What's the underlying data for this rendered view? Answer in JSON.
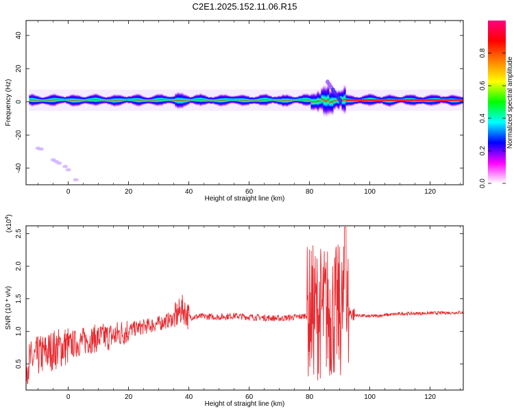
{
  "title": "C2E1.2025.152.11.06.R15",
  "chart_data": [
    {
      "type": "heatmap",
      "xlabel": "Height of straight line (km)",
      "ylabel": "Frequency (Hz)",
      "xlim": [
        -14,
        131
      ],
      "ylim": [
        -50,
        49
      ],
      "xticks": [
        0,
        20,
        40,
        60,
        80,
        100,
        120
      ],
      "yticks": [
        -40,
        -20,
        0,
        20,
        40
      ],
      "band": {
        "center_hz": 1,
        "half_width_hz": 2,
        "x_start": -13,
        "x_end": 131
      },
      "colorbar": {
        "label": "Normalized spectral amplitude",
        "range": [
          0,
          1
        ],
        "ticks": [
          "0.0",
          "0.2",
          "0.4",
          "0.6",
          "0.8"
        ],
        "colors": [
          "#ffffff",
          "#ff00ff",
          "#0000ff",
          "#00ffff",
          "#00ff00",
          "#ffff00",
          "#ff8000",
          "#ff0000",
          "#ff0080"
        ]
      },
      "artifacts": [
        {
          "x": -10,
          "y": -28
        },
        {
          "x": -9,
          "y": -28.5
        },
        {
          "x": -5,
          "y": -35
        },
        {
          "x": -4,
          "y": -36
        },
        {
          "x": -3,
          "y": -37
        },
        {
          "x": -1,
          "y": -39
        },
        {
          "x": 0,
          "y": -41
        },
        {
          "x": 2.5,
          "y": -47
        }
      ]
    },
    {
      "type": "line",
      "xlabel": "Height of straight line (km)",
      "ylabel": "SNR (10 * v/v)",
      "scale_label": "(x10",
      "scale_exp": "4",
      "xlim": [
        -14,
        131
      ],
      "ylim": [
        0.1,
        2.62
      ],
      "xticks": [
        0,
        20,
        40,
        60,
        80,
        100,
        120
      ],
      "yticks": [
        "0.5",
        "1.0",
        "1.5",
        "2.0",
        "2.5"
      ],
      "color": "#e8282e",
      "profile": [
        {
          "x": -14,
          "y": 0.5
        },
        {
          "x": -10,
          "y": 0.62
        },
        {
          "x": -5,
          "y": 0.72
        },
        {
          "x": 0,
          "y": 0.78
        },
        {
          "x": 5,
          "y": 0.85
        },
        {
          "x": 10,
          "y": 0.9
        },
        {
          "x": 15,
          "y": 0.93
        },
        {
          "x": 20,
          "y": 1.02
        },
        {
          "x": 25,
          "y": 1.07
        },
        {
          "x": 30,
          "y": 1.12
        },
        {
          "x": 35,
          "y": 1.2
        },
        {
          "x": 38,
          "y": 1.35
        },
        {
          "x": 40,
          "y": 1.22
        },
        {
          "x": 45,
          "y": 1.23
        },
        {
          "x": 50,
          "y": 1.22
        },
        {
          "x": 55,
          "y": 1.24
        },
        {
          "x": 60,
          "y": 1.22
        },
        {
          "x": 70,
          "y": 1.2
        },
        {
          "x": 78,
          "y": 1.23
        },
        {
          "x": 80,
          "y": 1.3
        },
        {
          "x": 85,
          "y": 1.3
        },
        {
          "x": 90,
          "y": 1.3
        },
        {
          "x": 93,
          "y": 1.3
        },
        {
          "x": 95,
          "y": 1.25
        },
        {
          "x": 100,
          "y": 1.23
        },
        {
          "x": 110,
          "y": 1.27
        },
        {
          "x": 120,
          "y": 1.28
        },
        {
          "x": 131,
          "y": 1.29
        }
      ]
    }
  ]
}
